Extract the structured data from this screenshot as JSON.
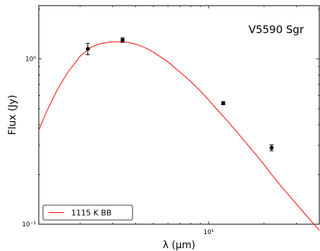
{
  "chart_data": {
    "type": "scatter",
    "title": "V5590 Sgr",
    "xlabel": "λ (μm)",
    "ylabel": "Flux (Jy)",
    "xscale": "log",
    "yscale": "log",
    "xlim": [
      1.19,
      40
    ],
    "ylim": [
      0.1,
      2.1
    ],
    "x_tick_labels": [
      {
        "value": 10,
        "label": "10¹"
      }
    ],
    "y_tick_labels": [
      {
        "value": 0.1,
        "label": "10⁻¹"
      },
      {
        "value": 1,
        "label": "10⁰"
      }
    ],
    "grid": false,
    "legend_position": "bottom-left",
    "series": [
      {
        "name": "1115 K BB",
        "kind": "line",
        "color": "#ff0000",
        "x": [
          1.19,
          1.3,
          1.5,
          1.7,
          2.0,
          2.3,
          2.6,
          3.0,
          3.35,
          3.6,
          4.0,
          4.5,
          5.0,
          6.0,
          7.0,
          8.0,
          9.0,
          10.0,
          11.0,
          12.0,
          14.0,
          16.0,
          18.0,
          20.0,
          22.0,
          25.0,
          28.0,
          32.0,
          36.0,
          40.0
        ],
        "y": [
          0.37,
          0.47,
          0.65,
          0.82,
          1.04,
          1.18,
          1.24,
          1.27,
          1.27,
          1.26,
          1.23,
          1.17,
          1.1,
          0.96,
          0.83,
          0.73,
          0.64,
          0.565,
          0.5,
          0.45,
          0.37,
          0.31,
          0.265,
          0.23,
          0.2,
          0.168,
          0.145,
          0.122,
          0.105,
          0.092
        ]
      },
      {
        "name": "",
        "kind": "points",
        "color": "#000000",
        "x": [
          2.2,
          3.4,
          12.0,
          22.0
        ],
        "y": [
          1.15,
          1.3,
          0.54,
          0.29
        ],
        "yerr": [
          0.09,
          0.04,
          0.012,
          0.012
        ]
      }
    ]
  }
}
